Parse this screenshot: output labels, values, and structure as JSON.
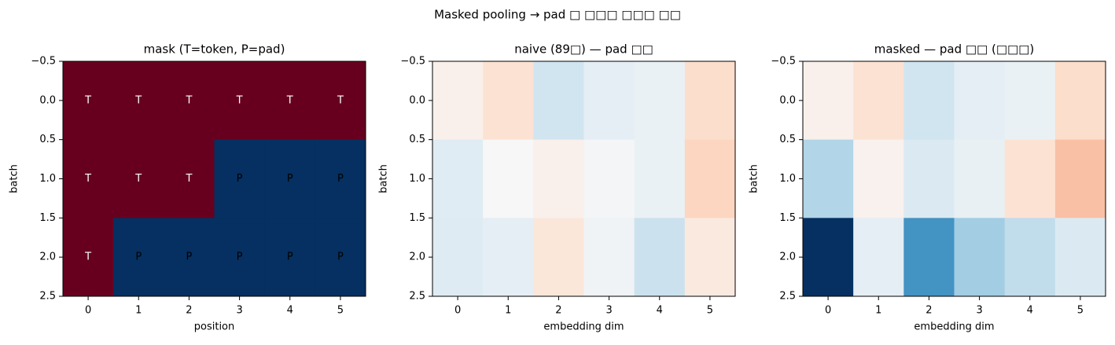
{
  "title": "Masked pooling → pad □ □□□ □□□ □□",
  "chart_data": [
    {
      "type": "heatmap",
      "title": "mask (T=token, P=pad)",
      "x_label": "position",
      "y_label": "batch",
      "values": [
        [
          1,
          1,
          1,
          1,
          1,
          1
        ],
        [
          1,
          1,
          1,
          0,
          0,
          0
        ],
        [
          1,
          0,
          0,
          0,
          0,
          0
        ]
      ],
      "cell_labels": [
        [
          "T",
          "T",
          "T",
          "T",
          "T",
          "T"
        ],
        [
          "T",
          "T",
          "T",
          "P",
          "P",
          "P"
        ],
        [
          "T",
          "P",
          "P",
          "P",
          "P",
          "P"
        ]
      ],
      "colormap": "RdBu_r",
      "clim": [
        0,
        1
      ],
      "xlim": [
        -0.5,
        5.5
      ],
      "ylim": [
        -0.5,
        2.5
      ],
      "y_inverted": true,
      "xticks": [
        0,
        1,
        2,
        3,
        4,
        5
      ],
      "yticks": [
        {
          "value": -0.5,
          "label": "−0.5"
        },
        {
          "value": 0,
          "label": "0.0"
        },
        {
          "value": 0.5,
          "label": "0.5"
        },
        {
          "value": 1,
          "label": "1.0"
        },
        {
          "value": 1.5,
          "label": "1.5"
        },
        {
          "value": 2,
          "label": "2.0"
        },
        {
          "value": 2.5,
          "label": "2.5"
        }
      ]
    },
    {
      "type": "heatmap",
      "title": "naive (89□) — pad □□",
      "x_label": "embedding dim",
      "y_label": "batch",
      "values": [
        [
          0.05,
          0.15,
          -0.2,
          -0.1,
          -0.07,
          0.18
        ],
        [
          -0.12,
          0.0,
          0.05,
          -0.02,
          -0.07,
          0.22
        ],
        [
          -0.13,
          -0.1,
          0.12,
          -0.04,
          -0.22,
          0.1
        ]
      ],
      "colormap": "RdBu_r",
      "clim": [
        -1,
        1
      ],
      "xlim": [
        -0.5,
        5.5
      ],
      "ylim": [
        -0.5,
        2.5
      ],
      "y_inverted": true,
      "xticks": [
        0,
        1,
        2,
        3,
        4,
        5
      ],
      "yticks": [
        {
          "value": -0.5,
          "label": "−0.5"
        },
        {
          "value": 0,
          "label": "0.0"
        },
        {
          "value": 0.5,
          "label": "0.5"
        },
        {
          "value": 1,
          "label": "1.0"
        },
        {
          "value": 1.5,
          "label": "1.5"
        },
        {
          "value": 2,
          "label": "2.0"
        },
        {
          "value": 2.5,
          "label": "2.5"
        }
      ]
    },
    {
      "type": "heatmap",
      "title": "masked — pad □□ (□□□)",
      "x_label": "embedding dim",
      "y_label": "batch",
      "values": [
        [
          0.05,
          0.15,
          -0.2,
          -0.1,
          -0.07,
          0.18
        ],
        [
          -0.3,
          0.04,
          -0.15,
          -0.08,
          0.15,
          0.3
        ],
        [
          -1.0,
          -0.1,
          -0.6,
          -0.35,
          -0.25,
          -0.15
        ]
      ],
      "colormap": "RdBu_r",
      "clim": [
        -1,
        1
      ],
      "xlim": [
        -0.5,
        5.5
      ],
      "ylim": [
        -0.5,
        2.5
      ],
      "y_inverted": true,
      "xticks": [
        0,
        1,
        2,
        3,
        4,
        5
      ],
      "yticks": [
        {
          "value": -0.5,
          "label": "−0.5"
        },
        {
          "value": 0,
          "label": "0.0"
        },
        {
          "value": 0.5,
          "label": "0.5"
        },
        {
          "value": 1,
          "label": "1.0"
        },
        {
          "value": 1.5,
          "label": "1.5"
        },
        {
          "value": 2,
          "label": "2.0"
        },
        {
          "value": 2.5,
          "label": "2.5"
        }
      ]
    }
  ]
}
